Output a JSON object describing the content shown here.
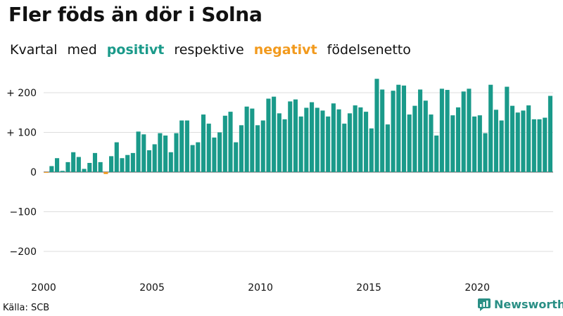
{
  "title": "Fler föds än dör i Solna",
  "subtitle": {
    "w1": "Kvartal",
    "w2": "med",
    "positive": "positivt",
    "w4": "respektive",
    "negative": "negativt",
    "w6": "födelsenetto"
  },
  "source": "Källa: SCB",
  "brand": "Newsworthy",
  "colors": {
    "positive": "#1a9a8a",
    "negative": "#f29a1d",
    "grid": "#dddddd",
    "zero": "#444444"
  },
  "chart_data": {
    "type": "bar",
    "x_start": "2000-Q1",
    "frequency": "quarterly",
    "ylim": [
      -250,
      250
    ],
    "yticks": [
      200,
      100,
      0,
      -100,
      -200
    ],
    "ytick_labels": [
      "+ 200",
      "+ 100",
      "0",
      "−100",
      "−200"
    ],
    "xticks": [
      2000,
      2005,
      2010,
      2015,
      2020
    ],
    "grid": true,
    "values": [
      -2,
      15,
      35,
      3,
      25,
      50,
      38,
      8,
      23,
      48,
      25,
      -5,
      40,
      75,
      35,
      43,
      48,
      102,
      95,
      55,
      70,
      98,
      92,
      50,
      98,
      130,
      130,
      68,
      75,
      145,
      122,
      87,
      100,
      142,
      152,
      75,
      118,
      165,
      160,
      118,
      130,
      185,
      190,
      148,
      133,
      178,
      183,
      140,
      162,
      176,
      162,
      155,
      140,
      173,
      158,
      122,
      148,
      168,
      163,
      152,
      110,
      235,
      208,
      120,
      205,
      220,
      218,
      145,
      167,
      208,
      180,
      145,
      92,
      210,
      207,
      143,
      163,
      203,
      210,
      140,
      143,
      98,
      220,
      157,
      130,
      215,
      167,
      150,
      155,
      168,
      133,
      133,
      137,
      192
    ]
  }
}
